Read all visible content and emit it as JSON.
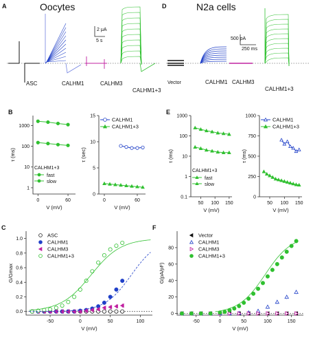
{
  "colors": {
    "black": "#111111",
    "blue": "#2040c8",
    "magenta": "#c020a0",
    "green": "#30c030",
    "lightblue": "#7080e0"
  },
  "panelA": {
    "letter": "A",
    "title": "Oocytes",
    "scale_y": "2 μA",
    "scale_x": "5 s",
    "labels": [
      "ASC",
      "CALHM1",
      "CALHM3",
      "CALHM1+3"
    ]
  },
  "panelD": {
    "letter": "D",
    "title": "N2a cells",
    "scale_y": "500 pA",
    "scale_x": "250 ms",
    "labels": [
      "Vector",
      "CALHM1",
      "CALHM3",
      "CALHM1+3"
    ]
  },
  "chart_data": [
    {
      "panel": "B-left",
      "letter": "B",
      "type": "line",
      "ylabel": "τ (ms)",
      "xlabel": "V (mV)",
      "yscale": "log",
      "ylim": [
        0.5,
        3000
      ],
      "xlim": [
        -10,
        75
      ],
      "xticks": [
        "0",
        "60"
      ],
      "yticks": [
        "1000",
        "100",
        "10",
        "1"
      ],
      "legend_title": "CALHM1+3",
      "legend": [
        "fast",
        "slow"
      ],
      "series": [
        {
          "name": "slow",
          "x": [
            0,
            20,
            40,
            60
          ],
          "y": [
            1600,
            1450,
            1250,
            1100
          ]
        },
        {
          "name": "fast",
          "x": [
            0,
            20,
            40,
            60
          ],
          "y": [
            150,
            135,
            120,
            110
          ]
        }
      ]
    },
    {
      "panel": "B-right",
      "type": "scatter",
      "ylabel": "τ (sec)",
      "xlabel": "V (mV)",
      "ylim": [
        0,
        15
      ],
      "xlim": [
        -10,
        75
      ],
      "xticks": [
        "0",
        "60"
      ],
      "yticks": [
        "0",
        "5",
        "10",
        "15"
      ],
      "legend": [
        "CALHM1",
        "CALHM1+3"
      ],
      "series": [
        {
          "name": "CALHM1",
          "x": [
            30,
            40,
            50,
            60,
            70
          ],
          "y": [
            9.2,
            9.0,
            8.8,
            8.8,
            8.9
          ]
        },
        {
          "name": "CALHM1+3",
          "x": [
            0,
            10,
            20,
            30,
            40,
            50,
            60,
            70
          ],
          "y": [
            2.0,
            1.9,
            1.8,
            1.7,
            1.6,
            1.5,
            1.4,
            1.3
          ]
        }
      ]
    },
    {
      "panel": "E-left",
      "letter": "E",
      "type": "line",
      "ylabel": "τ (ms)",
      "xlabel": "V (mV)",
      "yscale": "log",
      "ylim": [
        0.1,
        1000
      ],
      "xlim": [
        15,
        160
      ],
      "xticks": [
        "50",
        "100",
        "150"
      ],
      "yticks": [
        "1000",
        "100",
        "10",
        "1",
        "0.1"
      ],
      "legend_title": "CALHM1+3",
      "legend": [
        "fast",
        "slow"
      ],
      "series": [
        {
          "name": "slow",
          "x": [
            30,
            50,
            70,
            90,
            110,
            130,
            150
          ],
          "y": [
            250,
            210,
            180,
            160,
            140,
            130,
            120
          ]
        },
        {
          "name": "fast",
          "x": [
            30,
            50,
            70,
            90,
            110,
            130,
            150
          ],
          "y": [
            28,
            24,
            20,
            18,
            16,
            15,
            15
          ]
        }
      ]
    },
    {
      "panel": "E-right",
      "type": "scatter",
      "ylabel": "τ (ms)",
      "xlabel": "V (mV)",
      "ylim": [
        0,
        1000
      ],
      "xlim": [
        15,
        160
      ],
      "xticks": [
        "50",
        "100",
        "150"
      ],
      "yticks": [
        "1000",
        "750",
        "500",
        "250",
        "0"
      ],
      "legend": [
        "CALHM1",
        "CALHM1+3"
      ],
      "series": [
        {
          "name": "CALHM1",
          "x": [
            90,
            100,
            110,
            120,
            130,
            140,
            150
          ],
          "y": [
            700,
            650,
            680,
            620,
            600,
            560,
            580
          ]
        },
        {
          "name": "CALHM1+3",
          "x": [
            30,
            40,
            50,
            60,
            70,
            80,
            90,
            100,
            110,
            120,
            130,
            140,
            150
          ],
          "y": [
            310,
            280,
            260,
            240,
            220,
            210,
            200,
            190,
            180,
            170,
            160,
            150,
            145
          ]
        }
      ]
    },
    {
      "panel": "C",
      "letter": "C",
      "type": "scatter",
      "ylabel": "G/Gmax",
      "xlabel": "V (mV)",
      "ylim": [
        -0.05,
        1.1
      ],
      "xlim": [
        -90,
        120
      ],
      "xticks": [
        "-50",
        "0",
        "50",
        "100"
      ],
      "yticks": [
        "0.0",
        "0.2",
        "0.4",
        "0.6",
        "0.8",
        "1.0"
      ],
      "legend": [
        "ASC",
        "CALHM1",
        "CALHM3",
        "CALHM1+3"
      ],
      "series": [
        {
          "name": "ASC",
          "x": [
            -80,
            -70,
            -60,
            -50,
            -40,
            -30,
            -20,
            -10,
            0,
            10,
            20,
            30,
            40,
            50,
            60,
            70
          ],
          "y": [
            0,
            0,
            0,
            0,
            0,
            0,
            0,
            0,
            0,
            0,
            0,
            0,
            0,
            0,
            0,
            0
          ]
        },
        {
          "name": "CALHM1",
          "x": [
            -80,
            -70,
            -60,
            -50,
            -40,
            -30,
            -20,
            -10,
            0,
            10,
            20,
            30,
            40,
            50,
            60,
            70
          ],
          "y": [
            0,
            0,
            0,
            0,
            0,
            0,
            0,
            0,
            0.01,
            0.02,
            0.04,
            0.07,
            0.12,
            0.2,
            0.3,
            0.42
          ]
        },
        {
          "name": "CALHM3",
          "x": [
            -80,
            -70,
            -60,
            -50,
            -40,
            -30,
            -20,
            -10,
            0,
            10,
            20,
            30,
            40,
            50,
            60,
            70
          ],
          "y": [
            0,
            0,
            0,
            0,
            0,
            0,
            0,
            0,
            0,
            0.01,
            0.02,
            0.03,
            0.05,
            0.06,
            0.07,
            0.08
          ]
        },
        {
          "name": "CALHM1+3",
          "x": [
            -80,
            -70,
            -60,
            -50,
            -40,
            -30,
            -20,
            -10,
            0,
            10,
            20,
            30,
            40,
            50,
            60,
            70
          ],
          "y": [
            0.0,
            0.01,
            0.02,
            0.03,
            0.05,
            0.08,
            0.13,
            0.2,
            0.3,
            0.42,
            0.55,
            0.67,
            0.77,
            0.85,
            0.9,
            0.94
          ]
        }
      ]
    },
    {
      "panel": "F",
      "letter": "F",
      "type": "scatter",
      "ylabel": "G(pA/pF)",
      "xlabel": "V (mV)",
      "ylim": [
        -2,
        100
      ],
      "xlim": [
        -90,
        175
      ],
      "xticks": [
        "-50",
        "0",
        "50",
        "100",
        "150"
      ],
      "yticks": [
        "0",
        "20",
        "40",
        "60",
        "80"
      ],
      "legend": [
        "Vector",
        "CALHM1",
        "CALHM3",
        "CALHM1+3"
      ],
      "series": [
        {
          "name": "Vector",
          "x": [
            -80,
            -60,
            -40,
            -20,
            0,
            20,
            40,
            60,
            80,
            100,
            120,
            140,
            160
          ],
          "y": [
            0,
            0,
            0,
            0,
            0,
            0,
            0,
            0,
            0,
            0,
            0,
            0,
            0
          ]
        },
        {
          "name": "CALHM1",
          "x": [
            -80,
            -60,
            -40,
            -20,
            0,
            20,
            40,
            60,
            80,
            100,
            120,
            140,
            160
          ],
          "y": [
            0,
            0,
            0,
            0,
            0,
            0,
            0.5,
            1,
            3,
            8,
            14,
            20,
            26
          ]
        },
        {
          "name": "CALHM3",
          "x": [
            -80,
            -60,
            -40,
            -20,
            0,
            20,
            40,
            60,
            80,
            100,
            120,
            140,
            160
          ],
          "y": [
            0,
            0,
            0,
            0,
            0,
            0,
            0,
            0,
            0,
            0,
            0,
            0,
            0
          ]
        },
        {
          "name": "CALHM1+3",
          "x": [
            -80,
            -60,
            -40,
            -20,
            0,
            10,
            20,
            30,
            40,
            50,
            60,
            70,
            80,
            90,
            100,
            110,
            120,
            130,
            140,
            150,
            160
          ],
          "y": [
            0,
            0,
            0,
            0,
            1,
            2,
            4,
            6,
            9,
            13,
            18,
            24,
            30,
            37,
            45,
            53,
            60,
            68,
            75,
            82,
            88
          ]
        }
      ]
    }
  ]
}
